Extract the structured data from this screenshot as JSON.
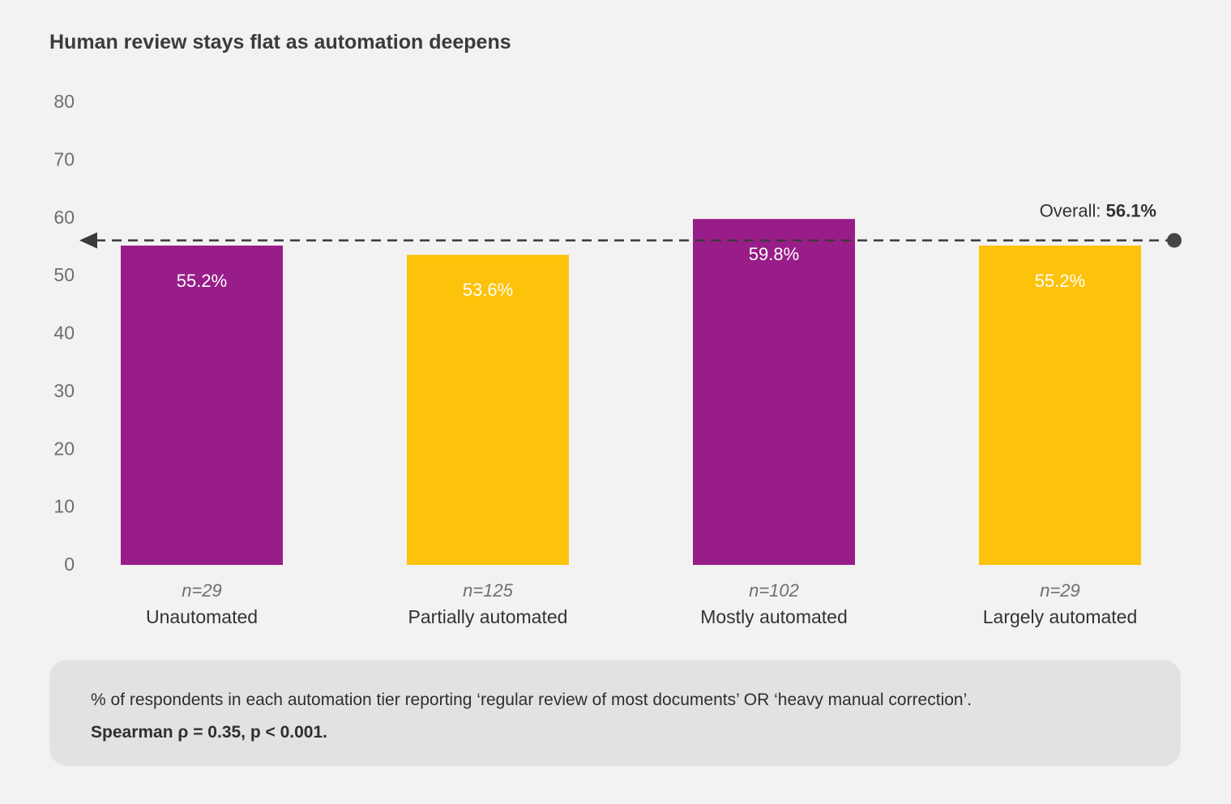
{
  "chart_data": {
    "type": "bar",
    "title": "Human review stays flat as automation deepens",
    "categories": [
      "Unautomated",
      "Partially automated",
      "Mostly automated",
      "Largely automated"
    ],
    "sample_sizes": [
      "n=29",
      "n=125",
      "n=102",
      "n=29"
    ],
    "values": [
      55.2,
      53.6,
      59.8,
      55.2
    ],
    "value_labels": [
      "55.2%",
      "53.6%",
      "59.8%",
      "55.2%"
    ],
    "bar_colors": [
      "#981d88",
      "#fdc20a",
      "#981d88",
      "#fdc20a"
    ],
    "ylim": [
      0,
      80
    ],
    "yticks": [
      "0",
      "10",
      "20",
      "30",
      "40",
      "50",
      "60",
      "70",
      "80"
    ],
    "reference_line": {
      "value": 56.1,
      "label_prefix": "Overall:",
      "label_value": "56.1%",
      "style": "dashed",
      "color": "#3a3a3a"
    },
    "grid": false,
    "legend": "none"
  },
  "caption": {
    "description": "% of respondents in each automation tier reporting ‘regular review of most documents’ OR ‘heavy manual correction’.",
    "statistic": "Spearman ρ = 0.35, p < 0.001."
  }
}
